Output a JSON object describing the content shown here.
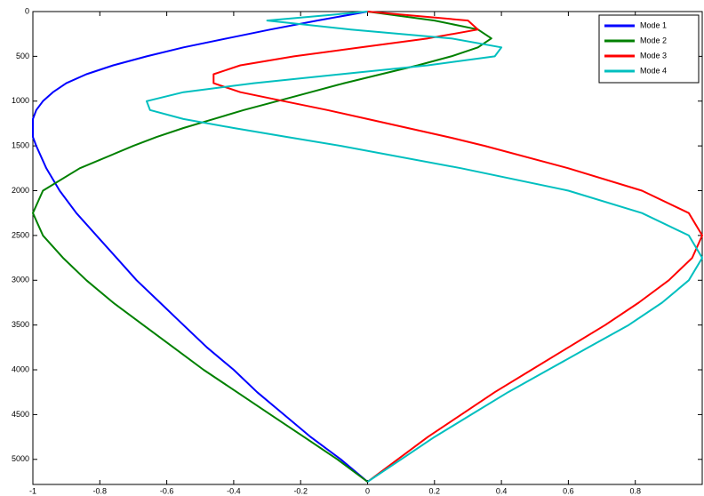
{
  "chart_data": {
    "type": "line",
    "y": [
      0,
      100,
      200,
      300,
      400,
      500,
      600,
      700,
      800,
      900,
      1000,
      1100,
      1200,
      1300,
      1400,
      1500,
      1750,
      2000,
      2250,
      2500,
      2750,
      3000,
      3250,
      3500,
      3750,
      4000,
      4250,
      4500,
      4750,
      5000,
      5250
    ],
    "series": [
      {
        "name": "Mode 1",
        "color": "#0000ff",
        "values": [
          0,
          -0.15,
          -0.29,
          -0.42,
          -0.55,
          -0.66,
          -0.76,
          -0.84,
          -0.9,
          -0.94,
          -0.97,
          -0.99,
          -1.0,
          -1.0,
          -1.0,
          -0.99,
          -0.96,
          -0.92,
          -0.87,
          -0.81,
          -0.75,
          -0.69,
          -0.62,
          -0.55,
          -0.48,
          -0.4,
          -0.33,
          -0.25,
          -0.17,
          -0.08,
          0
        ]
      },
      {
        "name": "Mode 2",
        "color": "#008000",
        "values": [
          0,
          0.2,
          0.33,
          0.37,
          0.33,
          0.25,
          0.15,
          0.04,
          -0.07,
          -0.17,
          -0.27,
          -0.37,
          -0.46,
          -0.55,
          -0.63,
          -0.7,
          -0.86,
          -0.97,
          -1.0,
          -0.97,
          -0.91,
          -0.84,
          -0.76,
          -0.67,
          -0.58,
          -0.49,
          -0.39,
          -0.29,
          -0.19,
          -0.09,
          0
        ]
      },
      {
        "name": "Mode 3",
        "color": "#ff0000",
        "values": [
          0,
          0.3,
          0.33,
          0.18,
          -0.02,
          -0.22,
          -0.38,
          -0.46,
          -0.46,
          -0.38,
          -0.25,
          -0.12,
          0.0,
          0.12,
          0.24,
          0.35,
          0.6,
          0.82,
          0.96,
          1.0,
          0.97,
          0.9,
          0.81,
          0.71,
          0.6,
          0.49,
          0.38,
          0.28,
          0.18,
          0.09,
          0
        ]
      },
      {
        "name": "Mode 4",
        "color": "#00bfbf",
        "values": [
          0,
          -0.3,
          -0.05,
          0.25,
          0.4,
          0.38,
          0.18,
          -0.08,
          -0.34,
          -0.55,
          -0.66,
          -0.65,
          -0.55,
          -0.4,
          -0.24,
          -0.08,
          0.28,
          0.6,
          0.82,
          0.96,
          1.0,
          0.96,
          0.88,
          0.78,
          0.66,
          0.54,
          0.42,
          0.31,
          0.2,
          0.1,
          0
        ]
      }
    ],
    "xlim": [
      -1,
      1
    ],
    "ylim": [
      0,
      5280
    ],
    "y_reversed": true,
    "xticks": [
      -1,
      -0.8,
      -0.6,
      -0.4,
      -0.2,
      0,
      0.2,
      0.4,
      0.6,
      0.8
    ],
    "yticks": [
      0,
      500,
      1000,
      1500,
      2000,
      2500,
      3000,
      3500,
      4000,
      4500,
      5000
    ],
    "legend": "northeast"
  }
}
